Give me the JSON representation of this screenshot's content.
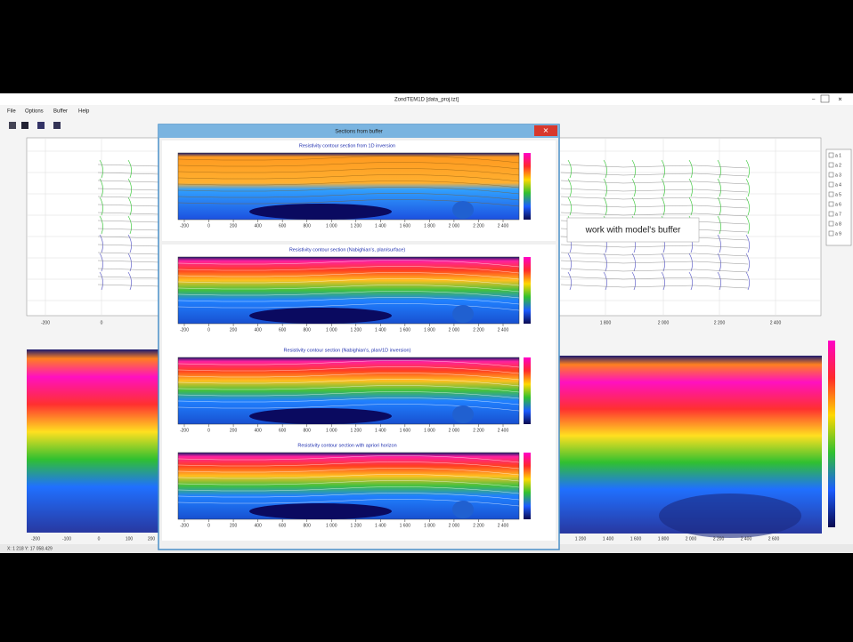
{
  "window": {
    "title": "ZondTEM1D [data_proj.tzt]",
    "menu": [
      "File",
      "Options",
      "Buffer",
      "Help"
    ]
  },
  "top_plot": {
    "x_labels": [
      "-200",
      "0",
      "1 800",
      "2 000",
      "2 200",
      "2 400"
    ]
  },
  "legend": [
    "a 1",
    "a 2",
    "a 3",
    "a 4",
    "a 5",
    "a 6",
    "a 7",
    "a 8",
    "a 9"
  ],
  "bottom_left": {
    "x_labels": [
      "-200",
      "-100",
      "0",
      "100",
      "200"
    ]
  },
  "bottom_right": {
    "x_labels": [
      "1 200",
      "1 400",
      "1 600",
      "1 800",
      "2 000",
      "2 200",
      "2 400",
      "2 600"
    ]
  },
  "dialog": {
    "title": "Sections from buffer",
    "panels": [
      {
        "title": "Resistivity contour section from 1D inversion",
        "x_ticks": [
          "-200",
          "0",
          "200",
          "400",
          "600",
          "800",
          "1 000",
          "1 200",
          "1 400",
          "1 600",
          "1 800",
          "2 000",
          "2 200",
          "2 400"
        ]
      },
      {
        "title": "Resistivity contour section (Nabighian's, plan/surface)",
        "x_ticks": [
          "-200",
          "0",
          "200",
          "400",
          "600",
          "800",
          "1 000",
          "1 200",
          "1 400",
          "1 600",
          "1 800",
          "2 000",
          "2 200",
          "2 400"
        ]
      },
      {
        "title": "Resistivity contour section (Nabighian's, plan/1D inversion)",
        "x_ticks": [
          "-200",
          "0",
          "200",
          "400",
          "600",
          "800",
          "1 000",
          "1 200",
          "1 400",
          "1 600",
          "1 800",
          "2 000",
          "2 200",
          "2 400"
        ]
      },
      {
        "title": "Resistivity contour section with apriori horizon",
        "x_ticks": [
          "-200",
          "0",
          "200",
          "400",
          "600",
          "800",
          "1 000",
          "1 200",
          "1 400",
          "1 600",
          "1 800",
          "2 000",
          "2 200",
          "2 400"
        ]
      }
    ]
  },
  "callout": "work with model's buffer",
  "status": "X: 1 218  Y: 17 058.429"
}
